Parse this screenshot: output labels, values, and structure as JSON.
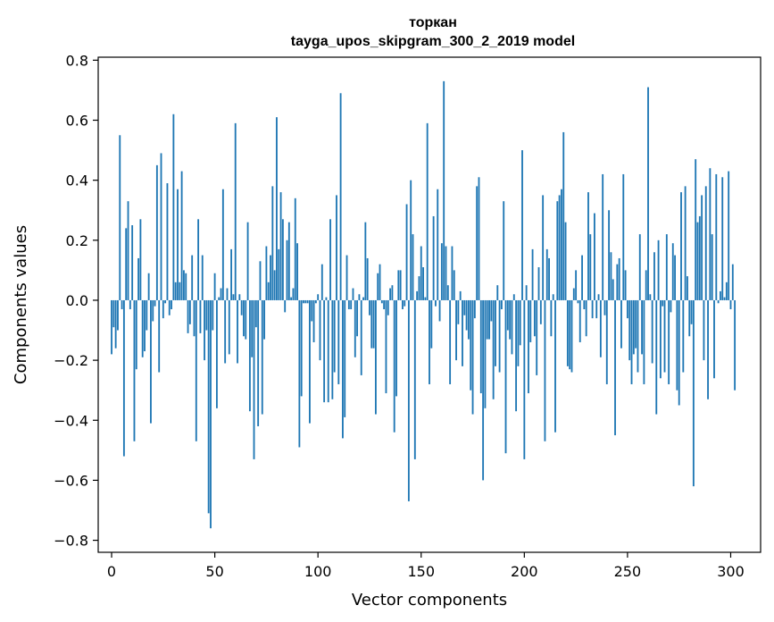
{
  "chart_data": {
    "type": "bar",
    "title": "торкан",
    "subtitle": "tayga_upos_skipgram_300_2_2019 model",
    "xlabel": "Vector components",
    "ylabel": "Components values",
    "xlim": [
      -6.5,
      314.5
    ],
    "ylim": [
      -0.84,
      0.81
    ],
    "xticks": [
      0,
      50,
      100,
      150,
      200,
      250,
      300
    ],
    "xtick_labels": [
      "0",
      "50",
      "100",
      "150",
      "200",
      "250",
      "300"
    ],
    "yticks": [
      -0.8,
      -0.6,
      -0.4,
      -0.2,
      0.0,
      0.2,
      0.4,
      0.6,
      0.8
    ],
    "ytick_labels": [
      "−0.8",
      "−0.6",
      "−0.4",
      "−0.2",
      "0.0",
      "0.2",
      "0.4",
      "0.6",
      "0.8"
    ],
    "grid": false,
    "bar_color": "#1f77b4",
    "values": [
      -0.18,
      -0.09,
      -0.16,
      -0.1,
      0.55,
      -0.03,
      -0.52,
      0.24,
      0.33,
      -0.03,
      0.25,
      -0.47,
      -0.23,
      0.14,
      0.27,
      -0.19,
      -0.17,
      -0.1,
      0.09,
      -0.41,
      -0.07,
      -0.02,
      0.45,
      -0.24,
      0.49,
      -0.06,
      -0.01,
      0.39,
      -0.05,
      -0.03,
      0.62,
      0.06,
      0.37,
      0.06,
      0.43,
      0.1,
      0.09,
      -0.11,
      -0.08,
      0.15,
      -0.12,
      -0.47,
      0.27,
      -0.11,
      0.15,
      -0.2,
      -0.1,
      -0.71,
      -0.76,
      -0.1,
      0.09,
      -0.36,
      0.01,
      0.04,
      0.37,
      -0.21,
      0.04,
      -0.18,
      0.17,
      0.02,
      0.59,
      -0.21,
      0.02,
      -0.05,
      -0.12,
      -0.13,
      0.26,
      -0.37,
      -0.19,
      -0.53,
      -0.09,
      -0.42,
      0.13,
      -0.38,
      -0.13,
      0.18,
      0.06,
      0.15,
      0.38,
      0.1,
      0.61,
      0.17,
      0.36,
      0.27,
      -0.04,
      0.2,
      0.26,
      0.01,
      0.04,
      0.34,
      0.19,
      -0.49,
      -0.32,
      -0.01,
      -0.01,
      -0.01,
      -0.41,
      -0.07,
      -0.14,
      -0.01,
      0.02,
      -0.2,
      0.12,
      -0.34,
      0.01,
      -0.34,
      0.27,
      -0.33,
      -0.24,
      0.35,
      -0.28,
      0.69,
      -0.46,
      -0.39,
      0.15,
      -0.03,
      -0.03,
      0.04,
      -0.19,
      -0.12,
      0.02,
      -0.25,
      0.01,
      0.26,
      0.14,
      -0.05,
      -0.16,
      -0.16,
      -0.38,
      0.09,
      0.12,
      -0.01,
      -0.03,
      -0.31,
      -0.05,
      0.04,
      0.05,
      -0.44,
      -0.32,
      0.1,
      0.1,
      -0.03,
      -0.02,
      0.32,
      -0.67,
      0.4,
      0.22,
      -0.53,
      0.03,
      0.08,
      0.18,
      0.11,
      0.01,
      0.59,
      -0.28,
      -0.16,
      0.28,
      -0.02,
      0.37,
      -0.07,
      0.19,
      0.73,
      0.18,
      0.05,
      -0.28,
      0.18,
      0.1,
      -0.2,
      -0.08,
      0.03,
      -0.22,
      -0.05,
      -0.1,
      -0.13,
      -0.3,
      -0.38,
      -0.06,
      0.38,
      0.41,
      -0.31,
      -0.6,
      -0.36,
      -0.13,
      -0.13,
      -0.07,
      -0.33,
      -0.22,
      0.05,
      -0.24,
      -0.03,
      0.33,
      -0.51,
      -0.1,
      -0.13,
      -0.18,
      0.02,
      -0.37,
      -0.22,
      -0.15,
      0.5,
      -0.53,
      0.05,
      -0.31,
      -0.14,
      0.17,
      -0.12,
      -0.25,
      0.11,
      -0.08,
      0.35,
      -0.47,
      0.17,
      0.14,
      -0.12,
      0.02,
      -0.44,
      0.33,
      0.35,
      0.37,
      0.56,
      0.26,
      -0.22,
      -0.23,
      -0.24,
      0.04,
      0.1,
      -0.01,
      -0.14,
      0.15,
      -0.03,
      -0.12,
      0.36,
      0.22,
      -0.06,
      0.29,
      -0.06,
      0.02,
      -0.19,
      0.42,
      -0.05,
      -0.28,
      0.3,
      0.16,
      0.07,
      -0.45,
      0.12,
      0.14,
      -0.16,
      0.42,
      0.1,
      -0.06,
      -0.2,
      -0.28,
      -0.18,
      -0.16,
      -0.24,
      0.22,
      -0.18,
      -0.28,
      0.1,
      0.71,
      0.02,
      -0.21,
      0.16,
      -0.38,
      0.2,
      -0.26,
      -0.02,
      -0.24,
      0.22,
      -0.28,
      -0.04,
      0.19,
      0.15,
      -0.3,
      -0.35,
      0.36,
      -0.24,
      0.38,
      0.08,
      -0.12,
      -0.08,
      -0.62,
      0.47,
      0.26,
      0.28,
      0.35,
      -0.2,
      0.38,
      -0.33,
      0.44,
      0.22,
      -0.26,
      0.42,
      -0.01,
      0.03,
      0.41,
      0.01,
      0.06,
      0.43,
      -0.03,
      0.12,
      -0.3
    ]
  }
}
